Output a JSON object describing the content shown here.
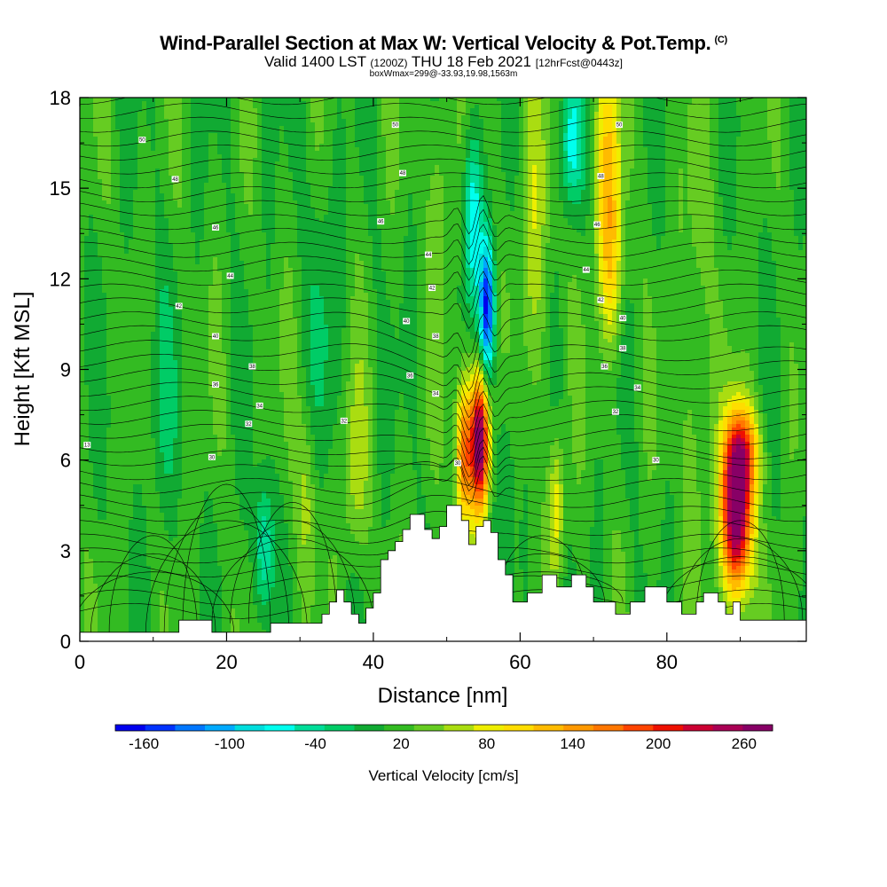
{
  "header": {
    "title": "Wind-Parallel Section at Max W: Vertical Velocity & Pot.Temp.",
    "copyright": "(C)",
    "valid_prefix": "Valid 1400 LST",
    "valid_utc": "(1200Z)",
    "valid_date": "THU 18 Feb 2021",
    "forecast": "[12hrFcst@0443z]",
    "box_info": "boxWmax=299@-33.93,19.98,1563m"
  },
  "chart_data": {
    "type": "heatmap",
    "xlabel": "Distance [nm]",
    "ylabel": "Height [Kft MSL]",
    "xlim": [
      0,
      99
    ],
    "ylim": [
      0,
      18
    ],
    "x_ticks": [
      0,
      20,
      40,
      60,
      80
    ],
    "y_ticks": [
      0,
      3,
      6,
      9,
      12,
      15,
      18
    ],
    "colorbar": {
      "label": "Vertical Velocity [cm/s]",
      "tick_labels": [
        "-160",
        "-100",
        "-40",
        "20",
        "80",
        "140",
        "200",
        "260"
      ],
      "tick_values": [
        -160,
        -100,
        -40,
        20,
        80,
        140,
        200,
        260
      ],
      "min": -180,
      "max": 280,
      "colors": [
        "#0000ee",
        "#0033ff",
        "#0077ff",
        "#00aaff",
        "#00dddd",
        "#00ffee",
        "#00dd99",
        "#00cc66",
        "#11aa33",
        "#33bb22",
        "#66cc22",
        "#aadd11",
        "#eeee00",
        "#ffdd00",
        "#ffbb00",
        "#ff9900",
        "#ff7700",
        "#ff4400",
        "#ee1100",
        "#cc0033",
        "#aa0055",
        "#880066"
      ]
    },
    "terrain_kft": [
      [
        0,
        0.3
      ],
      [
        13.5,
        0.3
      ],
      [
        13.5,
        0.7
      ],
      [
        18,
        0.7
      ],
      [
        18,
        0.3
      ],
      [
        26,
        0.3
      ],
      [
        26,
        0.6
      ],
      [
        33,
        0.6
      ],
      [
        33,
        0.9
      ],
      [
        34,
        0.9
      ],
      [
        34,
        1.3
      ],
      [
        35,
        1.3
      ],
      [
        35,
        1.7
      ],
      [
        36,
        1.7
      ],
      [
        36,
        1.3
      ],
      [
        37,
        1.3
      ],
      [
        37,
        0.9
      ],
      [
        38,
        0.9
      ],
      [
        38,
        0.6
      ],
      [
        39,
        0.6
      ],
      [
        39,
        1.1
      ],
      [
        40,
        1.1
      ],
      [
        40,
        1.6
      ],
      [
        41,
        1.6
      ],
      [
        41,
        2.7
      ],
      [
        42,
        2.7
      ],
      [
        42,
        3.0
      ],
      [
        43,
        3.0
      ],
      [
        43,
        3.3
      ],
      [
        44,
        3.3
      ],
      [
        44,
        3.7
      ],
      [
        45,
        3.7
      ],
      [
        45,
        4.2
      ],
      [
        47,
        4.2
      ],
      [
        47,
        3.7
      ],
      [
        48,
        3.7
      ],
      [
        48,
        3.4
      ],
      [
        49,
        3.4
      ],
      [
        49,
        3.8
      ],
      [
        50,
        3.8
      ],
      [
        50,
        4.5
      ],
      [
        52,
        4.5
      ],
      [
        52,
        4.0
      ],
      [
        53,
        4.0
      ],
      [
        53,
        3.2
      ],
      [
        54,
        3.2
      ],
      [
        54,
        3.8
      ],
      [
        55,
        3.8
      ],
      [
        55,
        4.0
      ],
      [
        56,
        4.0
      ],
      [
        56,
        3.6
      ],
      [
        57,
        3.6
      ],
      [
        57,
        2.7
      ],
      [
        58,
        2.7
      ],
      [
        58,
        2.2
      ],
      [
        59,
        2.2
      ],
      [
        59,
        1.3
      ],
      [
        61,
        1.3
      ],
      [
        61,
        1.6
      ],
      [
        63,
        1.6
      ],
      [
        63,
        2.2
      ],
      [
        65,
        2.2
      ],
      [
        65,
        1.8
      ],
      [
        67,
        1.8
      ],
      [
        67,
        2.2
      ],
      [
        69,
        2.2
      ],
      [
        69,
        1.8
      ],
      [
        70,
        1.8
      ],
      [
        70,
        1.3
      ],
      [
        73,
        1.3
      ],
      [
        73,
        0.9
      ],
      [
        75,
        0.9
      ],
      [
        75,
        1.3
      ],
      [
        77,
        1.3
      ],
      [
        77,
        1.8
      ],
      [
        80,
        1.8
      ],
      [
        80,
        1.3
      ],
      [
        82,
        1.3
      ],
      [
        82,
        0.9
      ],
      [
        84,
        0.9
      ],
      [
        84,
        1.3
      ],
      [
        85,
        1.3
      ],
      [
        85,
        1.6
      ],
      [
        87,
        1.6
      ],
      [
        87,
        1.3
      ],
      [
        88,
        1.3
      ],
      [
        88,
        0.9
      ],
      [
        89,
        0.9
      ],
      [
        89,
        1.3
      ],
      [
        90,
        1.3
      ],
      [
        90,
        0.7
      ],
      [
        99,
        0.7
      ]
    ],
    "theta_contour_labels": [
      {
        "x": 1,
        "y": 6.5,
        "text": "13"
      },
      {
        "x": 8.5,
        "y": 16.6,
        "text": "50"
      },
      {
        "x": 13,
        "y": 15.3,
        "text": "48"
      },
      {
        "x": 18.5,
        "y": 13.7,
        "text": "46"
      },
      {
        "x": 20.5,
        "y": 12.1,
        "text": "44"
      },
      {
        "x": 13.5,
        "y": 11.1,
        "text": "42"
      },
      {
        "x": 18.5,
        "y": 10.1,
        "text": "40"
      },
      {
        "x": 23.5,
        "y": 9.1,
        "text": "38"
      },
      {
        "x": 18.5,
        "y": 8.5,
        "text": "36"
      },
      {
        "x": 24.5,
        "y": 7.8,
        "text": "34"
      },
      {
        "x": 23,
        "y": 7.2,
        "text": "32"
      },
      {
        "x": 18,
        "y": 6.1,
        "text": "30"
      },
      {
        "x": 43,
        "y": 17.1,
        "text": "50"
      },
      {
        "x": 44,
        "y": 15.5,
        "text": "48"
      },
      {
        "x": 41,
        "y": 13.9,
        "text": "46"
      },
      {
        "x": 47.5,
        "y": 12.8,
        "text": "44"
      },
      {
        "x": 48,
        "y": 11.7,
        "text": "42"
      },
      {
        "x": 44.5,
        "y": 10.6,
        "text": "40"
      },
      {
        "x": 48.5,
        "y": 10.1,
        "text": "38"
      },
      {
        "x": 45,
        "y": 8.8,
        "text": "36"
      },
      {
        "x": 48.5,
        "y": 8.2,
        "text": "34"
      },
      {
        "x": 36,
        "y": 7.3,
        "text": "32"
      },
      {
        "x": 51.5,
        "y": 5.9,
        "text": "30"
      },
      {
        "x": 73.5,
        "y": 17.1,
        "text": "50"
      },
      {
        "x": 71,
        "y": 15.4,
        "text": "48"
      },
      {
        "x": 70.5,
        "y": 13.8,
        "text": "46"
      },
      {
        "x": 69,
        "y": 12.3,
        "text": "44"
      },
      {
        "x": 71,
        "y": 11.3,
        "text": "42"
      },
      {
        "x": 74,
        "y": 10.7,
        "text": "40"
      },
      {
        "x": 74,
        "y": 9.7,
        "text": "38"
      },
      {
        "x": 71.5,
        "y": 9.1,
        "text": "36"
      },
      {
        "x": 76,
        "y": 8.4,
        "text": "34"
      },
      {
        "x": 73,
        "y": 7.6,
        "text": "32"
      },
      {
        "x": 78.5,
        "y": 6.0,
        "text": "30"
      }
    ]
  }
}
